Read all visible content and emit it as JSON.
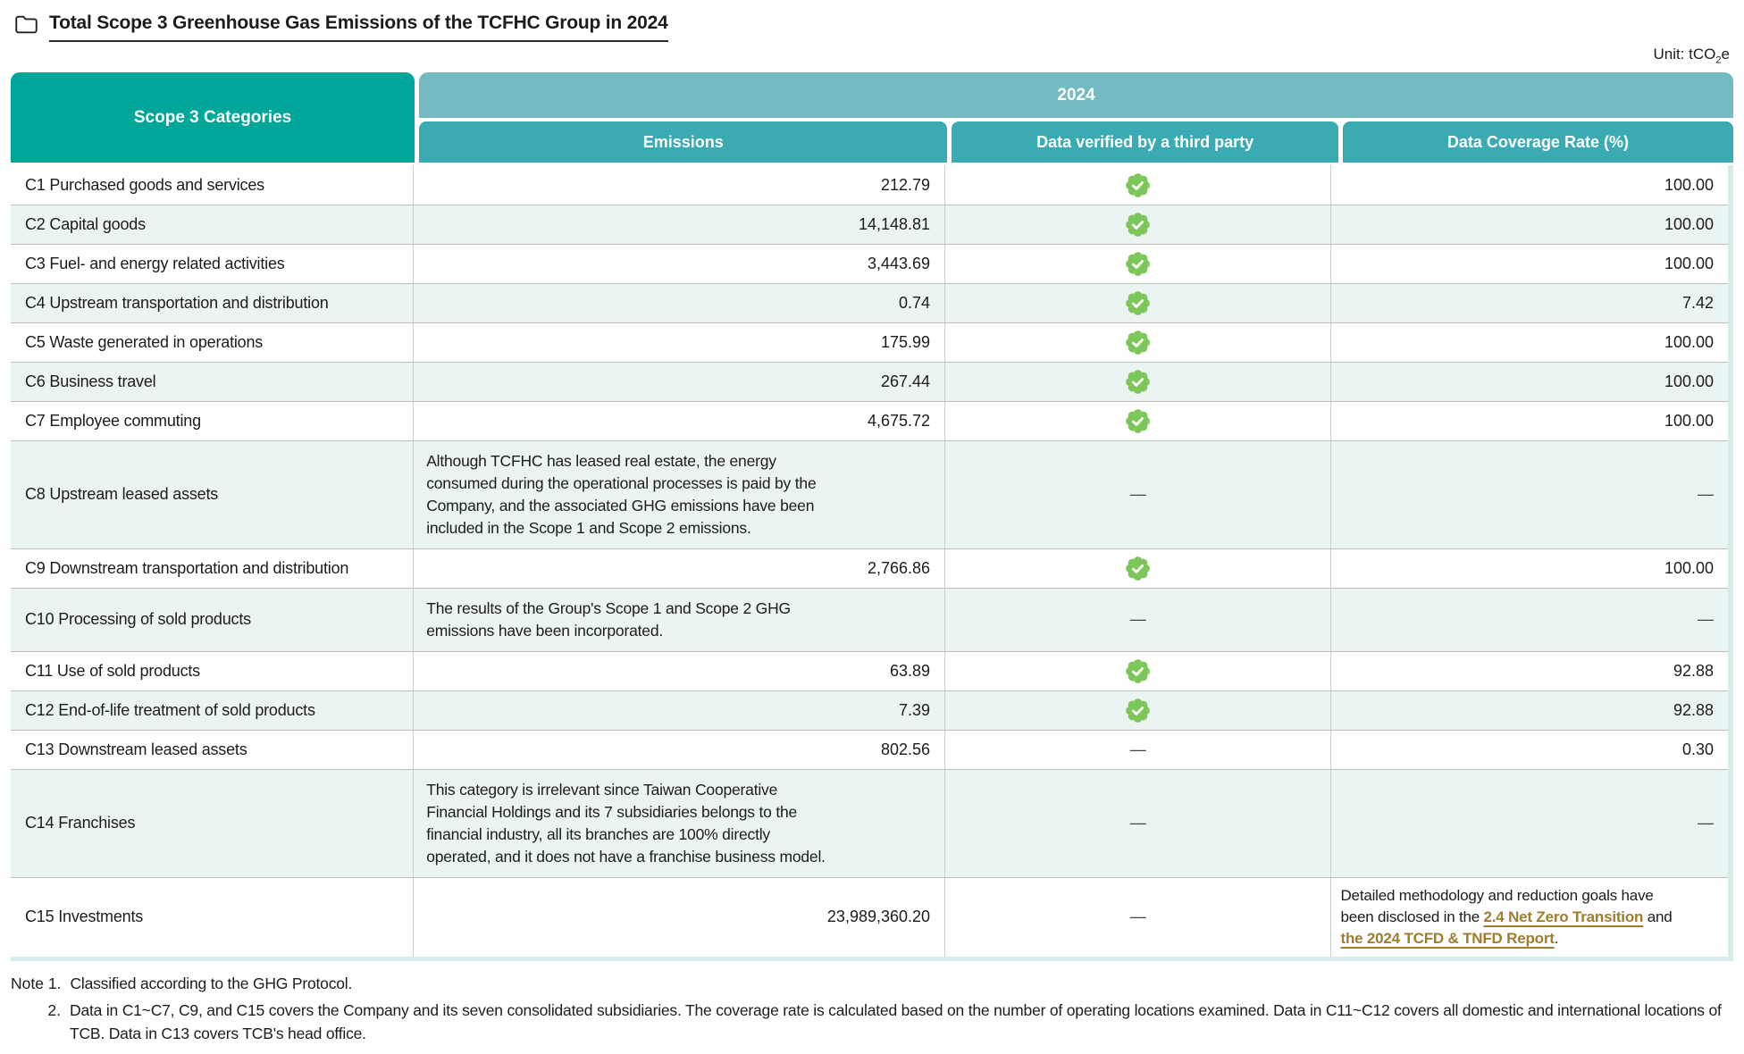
{
  "title": "Total Scope 3 Greenhouse Gas Emissions of the TCFHC Group in 2024",
  "unit": {
    "prefix": "Unit: tCO",
    "sub": "2",
    "suffix": "e"
  },
  "colors": {
    "category_header_teal": "#00A69A",
    "year_band_teal": "#74BBC1",
    "subheader_teal": "#3AABB3",
    "row_alt_background": "#EAF4F2",
    "badge_green": "#7CC65A",
    "link_gold": "#9E7D2E",
    "table_edge_teal": "#D6ECEA"
  },
  "table": {
    "col1_header": "Scope 3 Categories",
    "year_header": "2024",
    "subheaders": [
      "Emissions",
      "Data verified by a third party",
      "Data Coverage Rate (%)"
    ],
    "dash": "—",
    "rows": [
      {
        "category": "C1 Purchased goods and services",
        "emissions": {
          "type": "number",
          "value": "212.79"
        },
        "verified": "check",
        "coverage": {
          "type": "number",
          "value": "100.00"
        }
      },
      {
        "category": "C2 Capital goods",
        "emissions": {
          "type": "number",
          "value": "14,148.81"
        },
        "verified": "check",
        "coverage": {
          "type": "number",
          "value": "100.00"
        }
      },
      {
        "category": "C3 Fuel- and energy related activities",
        "emissions": {
          "type": "number",
          "value": "3,443.69"
        },
        "verified": "check",
        "coverage": {
          "type": "number",
          "value": "100.00"
        }
      },
      {
        "category": "C4 Upstream transportation and distribution",
        "emissions": {
          "type": "number",
          "value": "0.74"
        },
        "verified": "check",
        "coverage": {
          "type": "number",
          "value": "7.42"
        }
      },
      {
        "category": "C5 Waste generated in operations",
        "emissions": {
          "type": "number",
          "value": "175.99"
        },
        "verified": "check",
        "coverage": {
          "type": "number",
          "value": "100.00"
        }
      },
      {
        "category": "C6 Business travel",
        "emissions": {
          "type": "number",
          "value": "267.44"
        },
        "verified": "check",
        "coverage": {
          "type": "number",
          "value": "100.00"
        }
      },
      {
        "category": "C7 Employee commuting",
        "emissions": {
          "type": "number",
          "value": "4,675.72"
        },
        "verified": "check",
        "coverage": {
          "type": "number",
          "value": "100.00"
        }
      },
      {
        "category": "C8 Upstream leased assets",
        "emissions": {
          "type": "text",
          "value": "Although TCFHC has leased real estate, the energy consumed during the operational processes is paid by the Company, and the associated GHG emissions have been included in the Scope 1 and Scope 2 emissions."
        },
        "verified": "dash",
        "coverage": {
          "type": "dash"
        }
      },
      {
        "category": "C9 Downstream transportation and distribution",
        "emissions": {
          "type": "number",
          "value": "2,766.86"
        },
        "verified": "check",
        "coverage": {
          "type": "number",
          "value": "100.00"
        }
      },
      {
        "category": "C10 Processing of sold products",
        "emissions": {
          "type": "text",
          "value": "The results of the Group's Scope 1 and Scope 2 GHG emissions have been incorporated."
        },
        "verified": "dash",
        "coverage": {
          "type": "dash"
        }
      },
      {
        "category": "C11 Use of sold products",
        "emissions": {
          "type": "number",
          "value": "63.89"
        },
        "verified": "check",
        "coverage": {
          "type": "number",
          "value": "92.88"
        }
      },
      {
        "category": "C12 End-of-life treatment of sold products",
        "emissions": {
          "type": "number",
          "value": "7.39"
        },
        "verified": "check",
        "coverage": {
          "type": "number",
          "value": "92.88"
        }
      },
      {
        "category": "C13 Downstream leased assets",
        "emissions": {
          "type": "number",
          "value": "802.56"
        },
        "verified": "dash",
        "coverage": {
          "type": "number",
          "value": "0.30"
        }
      },
      {
        "category": "C14 Franchises",
        "emissions": {
          "type": "text",
          "value": "This category is irrelevant since Taiwan Cooperative Financial Holdings and its 7 subsidiaries belongs to the financial industry, all its branches are 100% directly operated, and it does not have a franchise business model."
        },
        "verified": "dash",
        "coverage": {
          "type": "dash"
        }
      },
      {
        "category": "C15 Investments",
        "emissions": {
          "type": "number",
          "value": "23,989,360.20"
        },
        "verified": "dash",
        "coverage": {
          "type": "rich",
          "parts": [
            {
              "text": "Detailed methodology and reduction goals have been disclosed in the "
            },
            {
              "text": "2.4 Net Zero Transition",
              "link": true,
              "name": "net-zero-transition-link"
            },
            {
              "text": " and "
            },
            {
              "text": "the 2024 TCFD & TNFD Report",
              "link": true,
              "name": "tcfd-tnfd-report-link"
            },
            {
              "text": "."
            }
          ]
        }
      }
    ]
  },
  "notes": [
    {
      "label": "Note 1.",
      "text": "Classified according to the GHG Protocol."
    },
    {
      "label": "2.",
      "text": "Data in C1~C7, C9, and C15 covers the Company and its seven consolidated subsidiaries. The coverage rate is calculated based on the number of operating locations examined. Data in C11~C12 covers all domestic and international locations of TCB. Data in C13 covers TCB's head office."
    }
  ]
}
